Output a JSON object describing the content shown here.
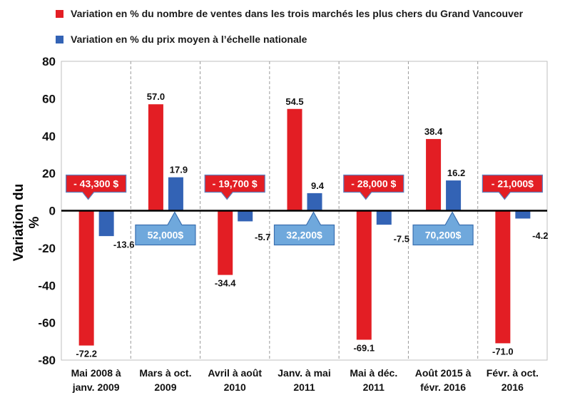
{
  "chart_data": {
    "type": "bar",
    "ylabel": "Variation du %",
    "ylim": [
      -80,
      80
    ],
    "yticks": [
      80,
      60,
      40,
      20,
      0,
      -20,
      -40,
      -60,
      -80
    ],
    "grid": "vertical-dashed-separators",
    "legend_position": "top",
    "categories": [
      [
        "Mai 2008 à",
        "janv. 2009"
      ],
      [
        "Mars à oct.",
        "2009"
      ],
      [
        "Avril  à août",
        "2010"
      ],
      [
        "Janv. à mai",
        "2011"
      ],
      [
        "Mai à déc.",
        "2011"
      ],
      [
        "Août 2015 à",
        "févr. 2016"
      ],
      [
        "Févr. à oct.",
        "2016"
      ]
    ],
    "series": [
      {
        "name": "Variation en % du nombre de ventes dans les trois marchés les plus chers du Grand Vancouver",
        "color": "#e31e24",
        "values": [
          -72.2,
          57.0,
          -34.4,
          54.5,
          -69.1,
          38.4,
          -71.0
        ],
        "labels": [
          "-72.2",
          "57.0",
          "-34.4",
          "54.5",
          "-69.1",
          "38.4",
          "-71.0"
        ]
      },
      {
        "name": "Variation en % du prix moyen à l’échelle nationale",
        "color": "#3363b5",
        "values": [
          -13.6,
          17.9,
          -5.7,
          9.4,
          -7.5,
          16.2,
          -4.2
        ],
        "labels": [
          "-13.6",
          "17.9",
          "-5.7",
          "9.4",
          "-7.5",
          "16.2",
          "-4.2"
        ]
      }
    ],
    "callouts": [
      {
        "text": "- 43,300 $",
        "kind": "decrease",
        "color": "#e31e24"
      },
      {
        "text": "52,000$",
        "kind": "increase",
        "color": "#6fa8dc"
      },
      {
        "text": "- 19,700 $",
        "kind": "decrease",
        "color": "#e31e24"
      },
      {
        "text": "32,200$",
        "kind": "increase",
        "color": "#6fa8dc"
      },
      {
        "text": "- 28,000 $",
        "kind": "decrease",
        "color": "#e31e24"
      },
      {
        "text": "70,200$",
        "kind": "increase",
        "color": "#6fa8dc"
      },
      {
        "text": "- 21,000$",
        "kind": "decrease",
        "color": "#e31e24"
      }
    ]
  }
}
